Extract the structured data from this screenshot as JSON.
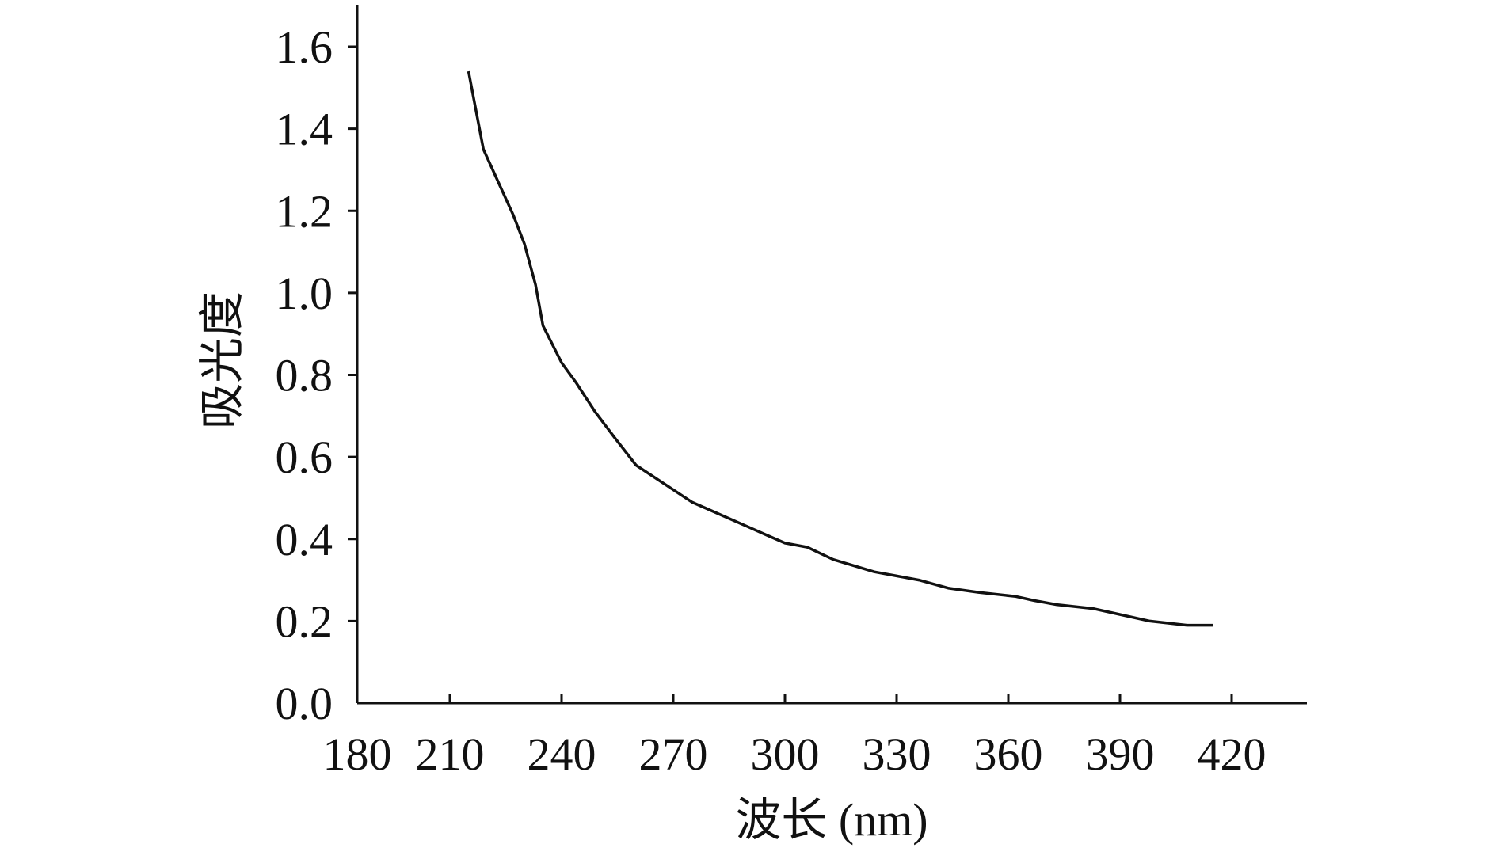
{
  "chart_data": {
    "type": "line",
    "title": "",
    "xlabel": "波长 (nm)",
    "ylabel": "吸光度",
    "x_ticks": [
      180,
      210,
      240,
      270,
      300,
      330,
      360,
      390,
      420
    ],
    "y_ticks": [
      "0.0",
      "0.2",
      "0.4",
      "0.6",
      "0.8",
      "1.0",
      "1.2",
      "1.4",
      "1.6"
    ],
    "xlim": [
      185,
      440
    ],
    "ylim": [
      0,
      1.7
    ],
    "grid": false,
    "line_color": "#111111",
    "series": [
      {
        "x": [
          215,
          219,
          223,
          227,
          230,
          233,
          235,
          240,
          244,
          249,
          254,
          260,
          270,
          275,
          280,
          290,
          295,
          300,
          306,
          313,
          324,
          330,
          336,
          344,
          352,
          362,
          367,
          373,
          383,
          388,
          398,
          408,
          415
        ],
        "y": [
          1.54,
          1.35,
          1.27,
          1.19,
          1.12,
          1.02,
          0.92,
          0.83,
          0.78,
          0.71,
          0.65,
          0.58,
          0.52,
          0.49,
          0.47,
          0.43,
          0.41,
          0.39,
          0.38,
          0.35,
          0.32,
          0.31,
          0.3,
          0.28,
          0.27,
          0.26,
          0.25,
          0.24,
          0.23,
          0.22,
          0.2,
          0.19,
          0.19
        ]
      }
    ]
  }
}
